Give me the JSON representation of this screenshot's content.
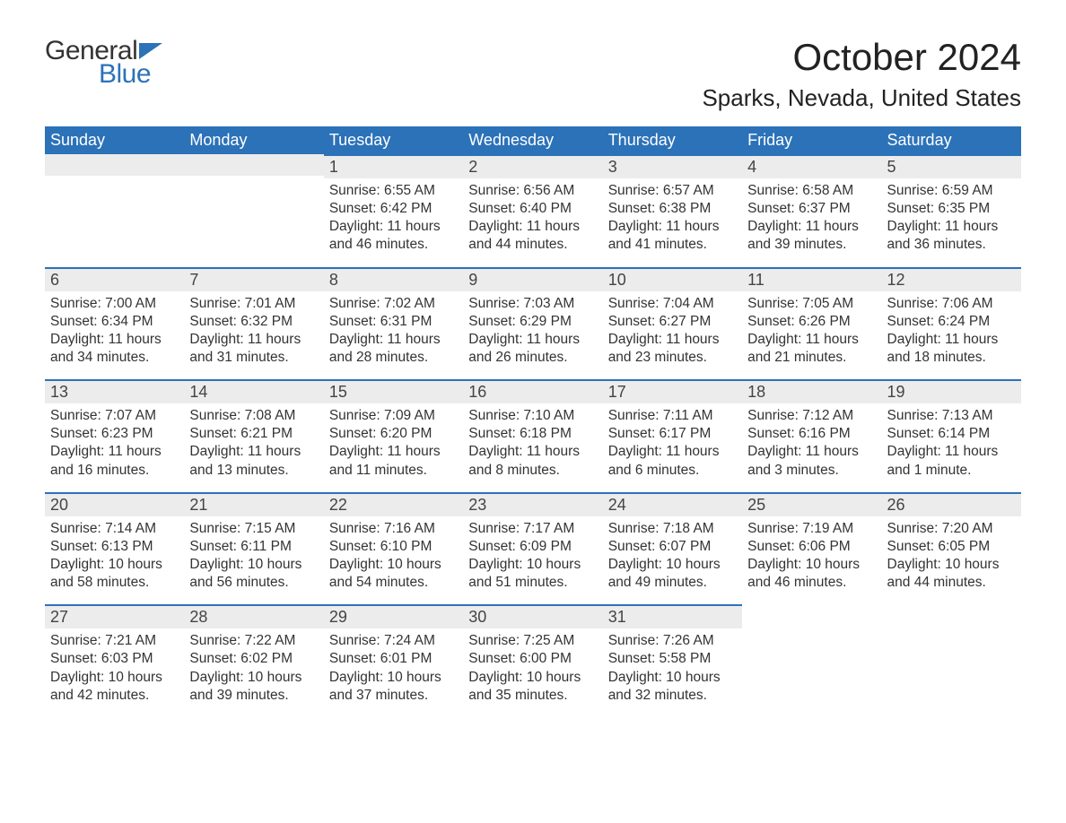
{
  "logo": {
    "text_general": "General",
    "text_blue": "Blue",
    "flag_color": "#2c72b8"
  },
  "title": "October 2024",
  "location": "Sparks, Nevada, United States",
  "colors": {
    "header_bg": "#2c72b8",
    "header_text": "#ffffff",
    "daynum_bg": "#ececec",
    "row_border": "#2c72b8",
    "body_text": "#333333",
    "title_text": "#222222"
  },
  "typography": {
    "month_title_fontsize": 42,
    "location_fontsize": 26,
    "day_header_fontsize": 18,
    "day_number_fontsize": 18,
    "cell_body_fontsize": 15.5
  },
  "day_names": [
    "Sunday",
    "Monday",
    "Tuesday",
    "Wednesday",
    "Thursday",
    "Friday",
    "Saturday"
  ],
  "weeks": [
    [
      {
        "empty": true
      },
      {
        "empty": true
      },
      {
        "n": "1",
        "sunrise": "Sunrise: 6:55 AM",
        "sunset": "Sunset: 6:42 PM",
        "day1": "Daylight: 11 hours",
        "day2": "and 46 minutes."
      },
      {
        "n": "2",
        "sunrise": "Sunrise: 6:56 AM",
        "sunset": "Sunset: 6:40 PM",
        "day1": "Daylight: 11 hours",
        "day2": "and 44 minutes."
      },
      {
        "n": "3",
        "sunrise": "Sunrise: 6:57 AM",
        "sunset": "Sunset: 6:38 PM",
        "day1": "Daylight: 11 hours",
        "day2": "and 41 minutes."
      },
      {
        "n": "4",
        "sunrise": "Sunrise: 6:58 AM",
        "sunset": "Sunset: 6:37 PM",
        "day1": "Daylight: 11 hours",
        "day2": "and 39 minutes."
      },
      {
        "n": "5",
        "sunrise": "Sunrise: 6:59 AM",
        "sunset": "Sunset: 6:35 PM",
        "day1": "Daylight: 11 hours",
        "day2": "and 36 minutes."
      }
    ],
    [
      {
        "n": "6",
        "sunrise": "Sunrise: 7:00 AM",
        "sunset": "Sunset: 6:34 PM",
        "day1": "Daylight: 11 hours",
        "day2": "and 34 minutes."
      },
      {
        "n": "7",
        "sunrise": "Sunrise: 7:01 AM",
        "sunset": "Sunset: 6:32 PM",
        "day1": "Daylight: 11 hours",
        "day2": "and 31 minutes."
      },
      {
        "n": "8",
        "sunrise": "Sunrise: 7:02 AM",
        "sunset": "Sunset: 6:31 PM",
        "day1": "Daylight: 11 hours",
        "day2": "and 28 minutes."
      },
      {
        "n": "9",
        "sunrise": "Sunrise: 7:03 AM",
        "sunset": "Sunset: 6:29 PM",
        "day1": "Daylight: 11 hours",
        "day2": "and 26 minutes."
      },
      {
        "n": "10",
        "sunrise": "Sunrise: 7:04 AM",
        "sunset": "Sunset: 6:27 PM",
        "day1": "Daylight: 11 hours",
        "day2": "and 23 minutes."
      },
      {
        "n": "11",
        "sunrise": "Sunrise: 7:05 AM",
        "sunset": "Sunset: 6:26 PM",
        "day1": "Daylight: 11 hours",
        "day2": "and 21 minutes."
      },
      {
        "n": "12",
        "sunrise": "Sunrise: 7:06 AM",
        "sunset": "Sunset: 6:24 PM",
        "day1": "Daylight: 11 hours",
        "day2": "and 18 minutes."
      }
    ],
    [
      {
        "n": "13",
        "sunrise": "Sunrise: 7:07 AM",
        "sunset": "Sunset: 6:23 PM",
        "day1": "Daylight: 11 hours",
        "day2": "and 16 minutes."
      },
      {
        "n": "14",
        "sunrise": "Sunrise: 7:08 AM",
        "sunset": "Sunset: 6:21 PM",
        "day1": "Daylight: 11 hours",
        "day2": "and 13 minutes."
      },
      {
        "n": "15",
        "sunrise": "Sunrise: 7:09 AM",
        "sunset": "Sunset: 6:20 PM",
        "day1": "Daylight: 11 hours",
        "day2": "and 11 minutes."
      },
      {
        "n": "16",
        "sunrise": "Sunrise: 7:10 AM",
        "sunset": "Sunset: 6:18 PM",
        "day1": "Daylight: 11 hours",
        "day2": "and 8 minutes."
      },
      {
        "n": "17",
        "sunrise": "Sunrise: 7:11 AM",
        "sunset": "Sunset: 6:17 PM",
        "day1": "Daylight: 11 hours",
        "day2": "and 6 minutes."
      },
      {
        "n": "18",
        "sunrise": "Sunrise: 7:12 AM",
        "sunset": "Sunset: 6:16 PM",
        "day1": "Daylight: 11 hours",
        "day2": "and 3 minutes."
      },
      {
        "n": "19",
        "sunrise": "Sunrise: 7:13 AM",
        "sunset": "Sunset: 6:14 PM",
        "day1": "Daylight: 11 hours",
        "day2": "and 1 minute."
      }
    ],
    [
      {
        "n": "20",
        "sunrise": "Sunrise: 7:14 AM",
        "sunset": "Sunset: 6:13 PM",
        "day1": "Daylight: 10 hours",
        "day2": "and 58 minutes."
      },
      {
        "n": "21",
        "sunrise": "Sunrise: 7:15 AM",
        "sunset": "Sunset: 6:11 PM",
        "day1": "Daylight: 10 hours",
        "day2": "and 56 minutes."
      },
      {
        "n": "22",
        "sunrise": "Sunrise: 7:16 AM",
        "sunset": "Sunset: 6:10 PM",
        "day1": "Daylight: 10 hours",
        "day2": "and 54 minutes."
      },
      {
        "n": "23",
        "sunrise": "Sunrise: 7:17 AM",
        "sunset": "Sunset: 6:09 PM",
        "day1": "Daylight: 10 hours",
        "day2": "and 51 minutes."
      },
      {
        "n": "24",
        "sunrise": "Sunrise: 7:18 AM",
        "sunset": "Sunset: 6:07 PM",
        "day1": "Daylight: 10 hours",
        "day2": "and 49 minutes."
      },
      {
        "n": "25",
        "sunrise": "Sunrise: 7:19 AM",
        "sunset": "Sunset: 6:06 PM",
        "day1": "Daylight: 10 hours",
        "day2": "and 46 minutes."
      },
      {
        "n": "26",
        "sunrise": "Sunrise: 7:20 AM",
        "sunset": "Sunset: 6:05 PM",
        "day1": "Daylight: 10 hours",
        "day2": "and 44 minutes."
      }
    ],
    [
      {
        "n": "27",
        "sunrise": "Sunrise: 7:21 AM",
        "sunset": "Sunset: 6:03 PM",
        "day1": "Daylight: 10 hours",
        "day2": "and 42 minutes."
      },
      {
        "n": "28",
        "sunrise": "Sunrise: 7:22 AM",
        "sunset": "Sunset: 6:02 PM",
        "day1": "Daylight: 10 hours",
        "day2": "and 39 minutes."
      },
      {
        "n": "29",
        "sunrise": "Sunrise: 7:24 AM",
        "sunset": "Sunset: 6:01 PM",
        "day1": "Daylight: 10 hours",
        "day2": "and 37 minutes."
      },
      {
        "n": "30",
        "sunrise": "Sunrise: 7:25 AM",
        "sunset": "Sunset: 6:00 PM",
        "day1": "Daylight: 10 hours",
        "day2": "and 35 minutes."
      },
      {
        "n": "31",
        "sunrise": "Sunrise: 7:26 AM",
        "sunset": "Sunset: 5:58 PM",
        "day1": "Daylight: 10 hours",
        "day2": "and 32 minutes."
      },
      {
        "empty": true
      },
      {
        "empty": true
      }
    ]
  ]
}
